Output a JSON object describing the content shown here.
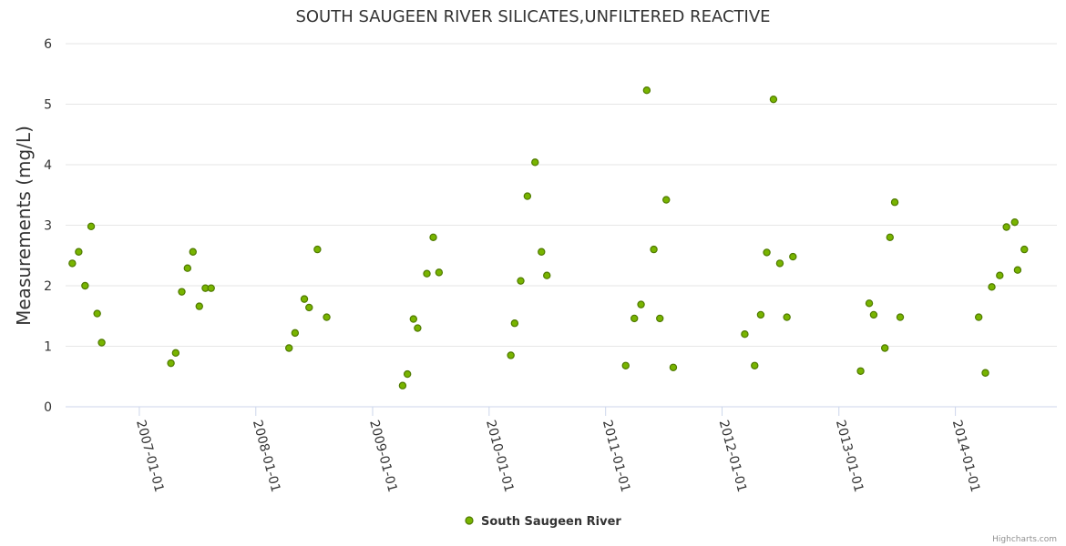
{
  "colors": {
    "point_fill": "#78b400",
    "point_stroke": "#4f7a00",
    "grid": "#e6e6e6",
    "axis": "#ccd6eb"
  },
  "credits": "Highcharts.com",
  "chart_data": {
    "type": "scatter",
    "title": "SOUTH SAUGEEN RIVER SILICATES,UNFILTERED REACTIVE",
    "xlabel": "",
    "ylabel": "Measurements (mg/L)",
    "ylim": [
      0,
      6
    ],
    "yticks": [
      "0",
      "1",
      "2",
      "3",
      "4",
      "5",
      "6"
    ],
    "xlim": [
      "2006-05-15",
      "2014-11-15"
    ],
    "xticks": [
      {
        "date": "2007-01-01",
        "label": "2007-01-01"
      },
      {
        "date": "2008-01-01",
        "label": "2008-01-01"
      },
      {
        "date": "2009-01-01",
        "label": "2009-01-01"
      },
      {
        "date": "2010-01-01",
        "label": "2010-01-01"
      },
      {
        "date": "2011-01-01",
        "label": "2011-01-01"
      },
      {
        "date": "2012-01-01",
        "label": "2012-01-01"
      },
      {
        "date": "2013-01-01",
        "label": "2013-01-01"
      },
      {
        "date": "2014-01-01",
        "label": "2014-01-01"
      }
    ],
    "legend": "bottom-center",
    "series": [
      {
        "name": "South Saugeen River",
        "points": [
          [
            "2006-06-05",
            2.37
          ],
          [
            "2006-06-25",
            2.56
          ],
          [
            "2006-07-15",
            2.0
          ],
          [
            "2006-08-03",
            2.98
          ],
          [
            "2006-08-22",
            1.54
          ],
          [
            "2006-09-05",
            1.06
          ],
          [
            "2007-04-10",
            0.72
          ],
          [
            "2007-04-25",
            0.89
          ],
          [
            "2007-05-14",
            1.9
          ],
          [
            "2007-06-01",
            2.29
          ],
          [
            "2007-06-18",
            2.56
          ],
          [
            "2007-07-08",
            1.66
          ],
          [
            "2007-07-27",
            1.96
          ],
          [
            "2007-08-14",
            1.96
          ],
          [
            "2008-04-14",
            0.97
          ],
          [
            "2008-05-03",
            1.22
          ],
          [
            "2008-06-01",
            1.78
          ],
          [
            "2008-06-16",
            1.64
          ],
          [
            "2008-07-12",
            2.6
          ],
          [
            "2008-08-10",
            1.48
          ],
          [
            "2009-04-05",
            0.35
          ],
          [
            "2009-04-20",
            0.54
          ],
          [
            "2009-05-09",
            1.45
          ],
          [
            "2009-05-22",
            1.3
          ],
          [
            "2009-06-20",
            2.2
          ],
          [
            "2009-07-10",
            2.8
          ],
          [
            "2009-07-28",
            2.22
          ],
          [
            "2010-03-10",
            0.85
          ],
          [
            "2010-03-22",
            1.38
          ],
          [
            "2010-04-10",
            2.08
          ],
          [
            "2010-05-01",
            3.48
          ],
          [
            "2010-05-25",
            4.04
          ],
          [
            "2010-06-14",
            2.56
          ],
          [
            "2010-07-01",
            2.17
          ],
          [
            "2011-03-05",
            0.68
          ],
          [
            "2011-04-01",
            1.46
          ],
          [
            "2011-04-22",
            1.69
          ],
          [
            "2011-05-10",
            5.23
          ],
          [
            "2011-06-01",
            2.6
          ],
          [
            "2011-06-20",
            1.46
          ],
          [
            "2011-07-10",
            3.42
          ],
          [
            "2011-08-01",
            0.65
          ],
          [
            "2012-03-12",
            1.2
          ],
          [
            "2012-04-12",
            0.68
          ],
          [
            "2012-05-01",
            1.52
          ],
          [
            "2012-05-20",
            2.55
          ],
          [
            "2012-06-10",
            5.08
          ],
          [
            "2012-06-30",
            2.37
          ],
          [
            "2012-07-22",
            1.48
          ],
          [
            "2012-08-10",
            2.48
          ],
          [
            "2013-03-10",
            0.59
          ],
          [
            "2013-04-06",
            1.71
          ],
          [
            "2013-04-20",
            1.52
          ],
          [
            "2013-05-25",
            0.97
          ],
          [
            "2013-06-10",
            2.8
          ],
          [
            "2013-06-25",
            3.38
          ],
          [
            "2013-07-12",
            1.48
          ],
          [
            "2014-03-15",
            1.48
          ],
          [
            "2014-04-05",
            0.56
          ],
          [
            "2014-04-25",
            1.98
          ],
          [
            "2014-05-20",
            2.17
          ],
          [
            "2014-06-10",
            2.97
          ],
          [
            "2014-07-06",
            3.05
          ],
          [
            "2014-07-15",
            2.26
          ],
          [
            "2014-08-05",
            2.6
          ]
        ]
      }
    ]
  }
}
